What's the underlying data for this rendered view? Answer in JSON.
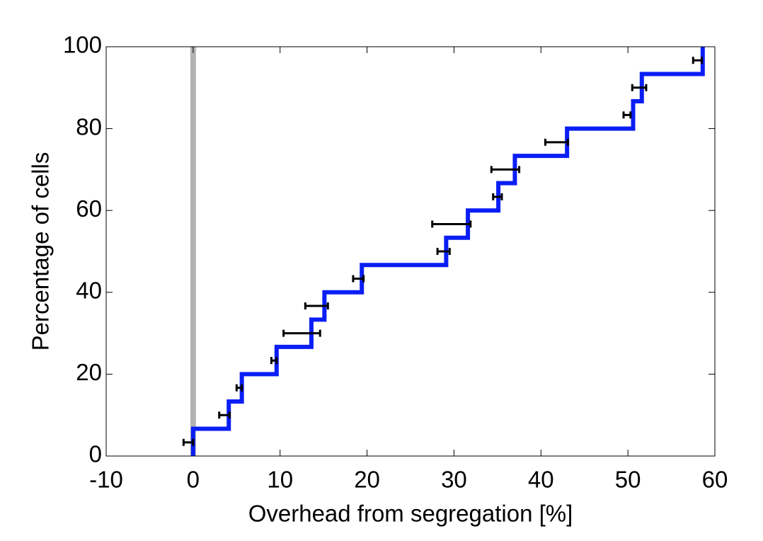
{
  "chart_data": {
    "type": "step",
    "xlabel": "Overhead from segregation [%]",
    "ylabel": "Percentage of cells",
    "xlim": [
      -10,
      60
    ],
    "xticks": [
      -10,
      0,
      10,
      20,
      30,
      40,
      50,
      60
    ],
    "ylim": [
      0,
      100
    ],
    "yticks": [
      0,
      20,
      40,
      60,
      80,
      100
    ],
    "reference_line": {
      "x": 0,
      "color": "#b3b3b3"
    },
    "series": [
      {
        "color": "#0a1ef5",
        "x": [
          0,
          0,
          4.1,
          5.6,
          9.6,
          13.6,
          15.1,
          19.4,
          29.1,
          31.6,
          35.1,
          37.0,
          43.0,
          50.6,
          51.6,
          58.6
        ],
        "values": [
          0,
          6.67,
          13.33,
          20,
          26.67,
          33.33,
          40,
          46.67,
          53.33,
          60,
          66.67,
          73.33,
          80,
          86.67,
          93.33,
          100
        ]
      },
      {
        "color": "#000000",
        "x": [
          -0.55,
          3.6,
          5.3,
          9.3,
          12.5,
          14.2,
          19.0,
          28.8,
          29.7,
          35.0,
          35.9,
          41.8,
          49.9,
          51.3,
          58.0
        ],
        "xerr": [
          0.55,
          0.6,
          0.3,
          0.3,
          2.1,
          1.3,
          0.6,
          0.7,
          2.2,
          0.5,
          1.6,
          1.3,
          0.4,
          0.8,
          0.5
        ],
        "values": [
          3.33,
          10,
          16.67,
          23.33,
          30,
          36.67,
          43.33,
          50,
          56.67,
          63.33,
          70,
          76.67,
          83.33,
          90,
          96.67
        ]
      }
    ]
  }
}
